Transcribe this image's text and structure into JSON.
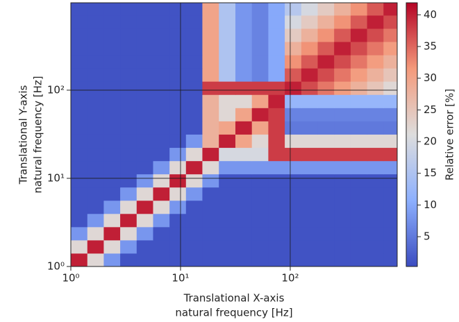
{
  "chart_data": {
    "type": "heatmap",
    "xlabel": [
      "Translational X-axis",
      "natural frequency [Hz]"
    ],
    "ylabel": [
      "Translational Y-axis",
      "natural frequency [Hz]"
    ],
    "colorbar_label": "Relative error [%]",
    "log_x": true,
    "log_y": true,
    "grid": true,
    "grid_color": "#1a1a1a",
    "xlim": [
      1,
      944
    ],
    "ylim": [
      1,
      980
    ],
    "xticks": [
      {
        "value": 1,
        "label": "10⁰"
      },
      {
        "value": 10,
        "label": "10¹"
      },
      {
        "value": 100,
        "label": "10²"
      }
    ],
    "yticks": [
      {
        "value": 1,
        "label": "10⁰"
      },
      {
        "value": 10,
        "label": "10¹"
      },
      {
        "value": 100,
        "label": "10²"
      }
    ],
    "clim": [
      0.3,
      41.9
    ],
    "cticks": [
      5,
      10,
      15,
      20,
      25,
      30,
      35,
      40
    ],
    "colormap": [
      "#3b4cc0",
      "#8db0fe",
      "#dddddd",
      "#f49a7b",
      "#b40426"
    ],
    "x": [
      1.19,
      1.68,
      2.37,
      3.35,
      4.73,
      6.68,
      9.44,
      13.3,
      18.8,
      26.6,
      37.6,
      53.1,
      75.0,
      106,
      150,
      211,
      299,
      422,
      596,
      841
    ],
    "y": [
      1.19,
      1.68,
      2.37,
      3.35,
      4.73,
      6.68,
      9.44,
      13.3,
      18.8,
      26.6,
      37.6,
      53.1,
      75.0,
      106,
      150,
      211,
      299,
      422,
      596,
      841
    ],
    "z": [
      [
        40,
        22,
        8,
        1,
        1,
        1,
        1,
        1,
        1,
        1,
        1,
        1,
        1,
        1,
        1,
        1,
        1,
        1,
        1,
        1
      ],
      [
        22,
        40,
        22,
        8,
        1,
        1,
        1,
        1,
        1,
        1,
        1,
        1,
        1,
        1,
        1,
        1,
        1,
        1,
        1,
        1
      ],
      [
        8,
        22,
        40,
        22,
        8,
        1,
        1,
        1,
        1,
        1,
        1,
        1,
        1,
        1,
        1,
        1,
        1,
        1,
        1,
        1
      ],
      [
        1,
        8,
        22,
        40,
        22,
        8,
        1,
        1,
        1,
        1,
        1,
        1,
        1,
        1,
        1,
        1,
        1,
        1,
        1,
        1
      ],
      [
        1,
        1,
        8,
        22,
        40,
        22,
        8,
        1,
        1,
        1,
        1,
        1,
        1,
        1,
        1,
        1,
        1,
        1,
        1,
        1
      ],
      [
        1,
        1,
        1,
        8,
        22,
        40,
        22,
        8,
        1,
        1,
        1,
        1,
        1,
        1,
        1,
        1,
        1,
        1,
        1,
        1
      ],
      [
        1,
        1,
        1,
        1,
        8,
        22,
        40,
        22,
        8,
        1,
        1,
        1,
        1,
        1,
        1,
        1,
        1,
        1,
        1,
        1
      ],
      [
        1,
        1,
        1,
        1,
        1,
        8,
        22,
        40,
        22,
        8,
        8,
        8,
        8,
        8,
        8,
        8,
        8,
        8,
        8,
        8
      ],
      [
        1,
        1,
        1,
        1,
        1,
        1,
        8,
        22,
        40,
        20,
        20,
        20,
        38,
        38,
        38,
        38,
        38,
        38,
        38,
        38
      ],
      [
        1,
        1,
        1,
        1,
        1,
        1,
        1,
        8,
        28,
        40,
        30,
        22,
        38,
        22,
        22,
        22,
        22,
        22,
        22,
        22
      ],
      [
        1,
        1,
        1,
        1,
        1,
        1,
        1,
        1,
        28,
        30,
        40,
        30,
        38,
        5,
        5,
        5,
        5,
        5,
        5,
        5
      ],
      [
        1,
        1,
        1,
        1,
        1,
        1,
        1,
        1,
        28,
        22,
        30,
        40,
        38,
        6,
        6,
        6,
        6,
        6,
        6,
        6
      ],
      [
        1,
        1,
        1,
        1,
        1,
        1,
        1,
        1,
        28,
        22,
        22,
        30,
        40,
        12,
        12,
        12,
        12,
        12,
        12,
        12
      ],
      [
        1,
        1,
        1,
        1,
        1,
        1,
        1,
        1,
        38,
        38,
        38,
        38,
        38,
        40,
        37,
        34,
        31,
        28,
        25,
        22
      ],
      [
        1,
        1,
        1,
        1,
        1,
        1,
        1,
        1,
        30,
        15,
        8,
        6,
        10,
        36,
        40,
        37,
        34,
        31,
        28,
        25
      ],
      [
        1,
        1,
        1,
        1,
        1,
        1,
        1,
        1,
        30,
        15,
        8,
        6,
        10,
        32,
        36,
        40,
        37,
        34,
        31,
        28
      ],
      [
        1,
        1,
        1,
        1,
        1,
        1,
        1,
        1,
        30,
        15,
        8,
        6,
        10,
        28,
        32,
        36,
        40,
        37,
        34,
        31
      ],
      [
        1,
        1,
        1,
        1,
        1,
        1,
        1,
        1,
        30,
        15,
        8,
        6,
        10,
        24,
        28,
        32,
        36,
        40,
        37,
        34
      ],
      [
        1,
        1,
        1,
        1,
        1,
        1,
        1,
        1,
        30,
        15,
        8,
        6,
        10,
        20,
        24,
        28,
        32,
        36,
        40,
        37
      ],
      [
        1,
        1,
        1,
        1,
        1,
        1,
        1,
        1,
        30,
        15,
        8,
        6,
        10,
        16,
        20,
        24,
        28,
        32,
        36,
        40
      ]
    ]
  }
}
